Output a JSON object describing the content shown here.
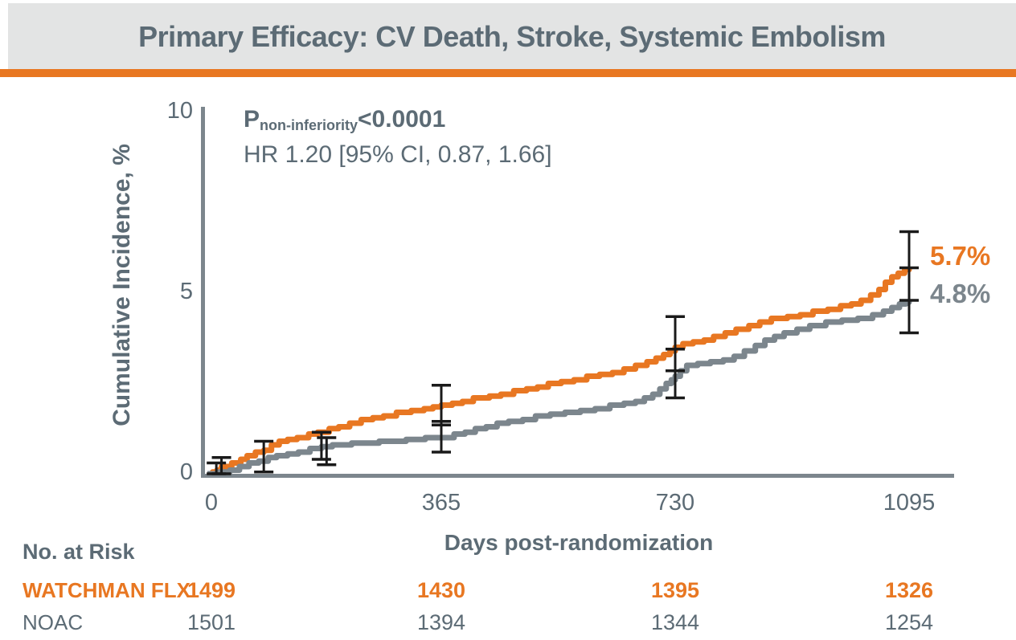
{
  "header": {
    "title": "Primary Efficacy: CV Death, Stroke, Systemic Embolism"
  },
  "colors": {
    "accent_orange": "#E87722",
    "curve_gray": "#7C868D",
    "text_slate": "#5C6B75",
    "header_bg": "#E3E4E4",
    "error_bar_black": "#1A1A1A"
  },
  "annotations": {
    "p_label": "P",
    "p_subscript": "non-inferiority",
    "p_value": "<0.0001",
    "hr_text": "HR 1.20 [95% CI, 0.87, 1.66]"
  },
  "end_labels": {
    "watchman": "5.7%",
    "noac": "4.8%"
  },
  "chart_data": {
    "type": "line",
    "subtype": "kaplan-meier-step",
    "title": "Primary Efficacy: CV Death, Stroke, Systemic Embolism",
    "xlabel": "Days post-randomization",
    "ylabel": "Cumulative Incidence, %",
    "xlim": [
      0,
      1095
    ],
    "ylim": [
      0,
      10
    ],
    "xticks": [
      0,
      365,
      730,
      1095
    ],
    "yticks": [
      0,
      5,
      10
    ],
    "grid": false,
    "legend_position": "none",
    "series": [
      {
        "name": "WATCHMAN FLX",
        "color": "#E87722",
        "final_value_label": "5.7%",
        "points": [
          [
            0,
            0
          ],
          [
            8,
            0.05
          ],
          [
            15,
            0.1
          ],
          [
            22,
            0.2
          ],
          [
            38,
            0.3
          ],
          [
            52,
            0.4
          ],
          [
            62,
            0.5
          ],
          [
            75,
            0.6
          ],
          [
            88,
            0.65
          ],
          [
            100,
            0.8
          ],
          [
            112,
            0.9
          ],
          [
            125,
            0.95
          ],
          [
            140,
            1.0
          ],
          [
            158,
            1.1
          ],
          [
            172,
            1.15
          ],
          [
            190,
            1.25
          ],
          [
            205,
            1.3
          ],
          [
            222,
            1.4
          ],
          [
            240,
            1.5
          ],
          [
            258,
            1.55
          ],
          [
            275,
            1.6
          ],
          [
            295,
            1.7
          ],
          [
            318,
            1.75
          ],
          [
            338,
            1.8
          ],
          [
            352,
            1.85
          ],
          [
            365,
            1.9
          ],
          [
            382,
            1.95
          ],
          [
            398,
            2.0
          ],
          [
            415,
            2.1
          ],
          [
            440,
            2.15
          ],
          [
            458,
            2.2
          ],
          [
            478,
            2.3
          ],
          [
            498,
            2.35
          ],
          [
            515,
            2.4
          ],
          [
            532,
            2.5
          ],
          [
            552,
            2.55
          ],
          [
            572,
            2.6
          ],
          [
            592,
            2.7
          ],
          [
            612,
            2.75
          ],
          [
            632,
            2.8
          ],
          [
            650,
            2.9
          ],
          [
            668,
            3.0
          ],
          [
            686,
            3.1
          ],
          [
            700,
            3.2
          ],
          [
            712,
            3.3
          ],
          [
            722,
            3.4
          ],
          [
            730,
            3.5
          ],
          [
            742,
            3.6
          ],
          [
            758,
            3.65
          ],
          [
            775,
            3.7
          ],
          [
            790,
            3.8
          ],
          [
            808,
            3.9
          ],
          [
            825,
            4.0
          ],
          [
            845,
            4.1
          ],
          [
            862,
            4.2
          ],
          [
            880,
            4.3
          ],
          [
            905,
            4.35
          ],
          [
            925,
            4.4
          ],
          [
            945,
            4.5
          ],
          [
            968,
            4.55
          ],
          [
            988,
            4.65
          ],
          [
            1005,
            4.7
          ],
          [
            1020,
            4.8
          ],
          [
            1035,
            4.95
          ],
          [
            1048,
            5.1
          ],
          [
            1058,
            5.3
          ],
          [
            1068,
            5.45
          ],
          [
            1078,
            5.55
          ],
          [
            1088,
            5.65
          ],
          [
            1095,
            5.7
          ]
        ],
        "error_bars": [
          {
            "day": 22,
            "low": 0.0,
            "high": 0.45
          },
          {
            "day": 88,
            "low": 0.05,
            "high": 0.9
          },
          {
            "day": 178,
            "low": 0.4,
            "high": 1.15
          },
          {
            "day": 365,
            "low": 1.35,
            "high": 2.45
          },
          {
            "day": 730,
            "low": 2.85,
            "high": 4.35
          },
          {
            "day": 1095,
            "low": 4.8,
            "high": 6.7
          }
        ]
      },
      {
        "name": "NOAC",
        "color": "#7C868D",
        "final_value_label": "4.8%",
        "points": [
          [
            0,
            0
          ],
          [
            18,
            0.05
          ],
          [
            35,
            0.1
          ],
          [
            50,
            0.2
          ],
          [
            65,
            0.3
          ],
          [
            80,
            0.35
          ],
          [
            95,
            0.45
          ],
          [
            108,
            0.5
          ],
          [
            125,
            0.55
          ],
          [
            142,
            0.6
          ],
          [
            160,
            0.7
          ],
          [
            178,
            0.75
          ],
          [
            195,
            0.8
          ],
          [
            225,
            0.85
          ],
          [
            268,
            0.9
          ],
          [
            310,
            0.95
          ],
          [
            340,
            1.0
          ],
          [
            385,
            1.1
          ],
          [
            402,
            1.15
          ],
          [
            418,
            1.25
          ],
          [
            435,
            1.3
          ],
          [
            452,
            1.4
          ],
          [
            470,
            1.45
          ],
          [
            492,
            1.5
          ],
          [
            512,
            1.6
          ],
          [
            535,
            1.65
          ],
          [
            558,
            1.7
          ],
          [
            582,
            1.75
          ],
          [
            605,
            1.8
          ],
          [
            628,
            1.9
          ],
          [
            650,
            1.95
          ],
          [
            668,
            2.0
          ],
          [
            682,
            2.1
          ],
          [
            695,
            2.2
          ],
          [
            706,
            2.35
          ],
          [
            716,
            2.5
          ],
          [
            724,
            2.6
          ],
          [
            730,
            2.7
          ],
          [
            738,
            2.85
          ],
          [
            748,
            3.0
          ],
          [
            765,
            3.05
          ],
          [
            785,
            3.1
          ],
          [
            805,
            3.15
          ],
          [
            822,
            3.25
          ],
          [
            838,
            3.4
          ],
          [
            855,
            3.55
          ],
          [
            870,
            3.7
          ],
          [
            885,
            3.8
          ],
          [
            900,
            3.9
          ],
          [
            920,
            4.0
          ],
          [
            940,
            4.1
          ],
          [
            965,
            4.2
          ],
          [
            990,
            4.25
          ],
          [
            1015,
            4.3
          ],
          [
            1038,
            4.4
          ],
          [
            1055,
            4.5
          ],
          [
            1068,
            4.6
          ],
          [
            1080,
            4.7
          ],
          [
            1090,
            4.75
          ],
          [
            1095,
            4.8
          ]
        ],
        "error_bars": [
          {
            "day": 14,
            "low": 0.0,
            "high": 0.3
          },
          {
            "day": 186,
            "low": 0.25,
            "high": 1.0
          },
          {
            "day": 365,
            "low": 0.6,
            "high": 1.45
          },
          {
            "day": 730,
            "low": 2.1,
            "high": 3.45
          },
          {
            "day": 1095,
            "low": 3.9,
            "high": 5.7
          }
        ]
      }
    ]
  },
  "risk_table": {
    "header": "No. at Risk",
    "column_days": [
      0,
      365,
      730,
      1095
    ],
    "rows": [
      {
        "label": "WATCHMAN FLX",
        "values": [
          "1499",
          "1430",
          "1395",
          "1326"
        ]
      },
      {
        "label": "NOAC",
        "values": [
          "1501",
          "1394",
          "1344",
          "1254"
        ]
      }
    ]
  }
}
